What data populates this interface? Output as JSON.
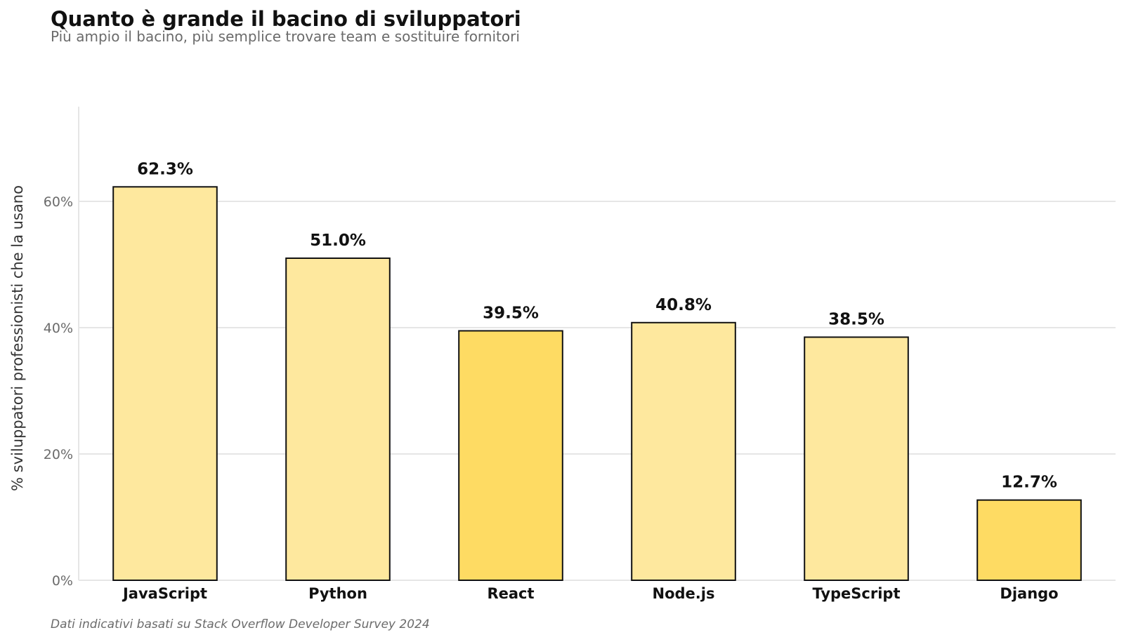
{
  "title": "Quanto è grande il bacino di sviluppatori",
  "subtitle": "Più ampio il bacino, più semplice trovare team e sostituire fornitori",
  "caption": "Dati indicativi basati su Stack Overflow Developer Survey 2024",
  "colors": {
    "bar_light": "#fee89e",
    "bar_highlight": "#fedb63",
    "bar_stroke": "#111111",
    "grid": "#e6e6e6",
    "axis": "#dddddd"
  },
  "chart_data": {
    "type": "bar",
    "categories": [
      "JavaScript",
      "Python",
      "React",
      "Node.js",
      "TypeScript",
      "Django"
    ],
    "values": [
      62.3,
      51.0,
      39.5,
      40.8,
      38.5,
      12.7
    ],
    "value_labels": [
      "62.3%",
      "51.0%",
      "39.5%",
      "40.8%",
      "38.5%",
      "12.7%"
    ],
    "highlighted": [
      false,
      false,
      true,
      false,
      false,
      true
    ],
    "xlabel": "",
    "ylabel": "% sviluppatori professionisti che la usano",
    "ylim": [
      0,
      75
    ],
    "yticks": [
      0,
      20,
      40,
      60
    ],
    "ytick_labels": [
      "0%",
      "20%",
      "40%",
      "60%"
    ],
    "grid": "horizontal",
    "legend": "none"
  }
}
